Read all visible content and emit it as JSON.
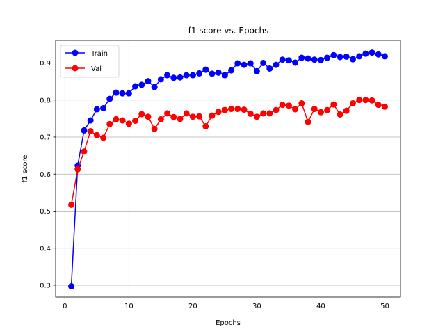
{
  "chart_data": {
    "type": "line",
    "title": "f1 score vs. Epochs",
    "xlabel": "Epochs",
    "ylabel": "f1 score",
    "xlim": [
      -1.45,
      52.45
    ],
    "ylim": [
      0.268,
      0.961
    ],
    "xticks": [
      0,
      10,
      20,
      30,
      40,
      50
    ],
    "yticks": [
      0.3,
      0.4,
      0.5,
      0.6,
      0.7,
      0.8,
      0.9
    ],
    "grid": true,
    "legend_position": "upper-left",
    "x": [
      1,
      2,
      3,
      4,
      5,
      6,
      7,
      8,
      9,
      10,
      11,
      12,
      13,
      14,
      15,
      16,
      17,
      18,
      19,
      20,
      21,
      22,
      23,
      24,
      25,
      26,
      27,
      28,
      29,
      30,
      31,
      32,
      33,
      34,
      35,
      36,
      37,
      38,
      39,
      40,
      41,
      42,
      43,
      44,
      45,
      46,
      47,
      48,
      49,
      50
    ],
    "series": [
      {
        "name": "Train",
        "color": "#0000ff",
        "values": [
          0.297,
          0.623,
          0.718,
          0.745,
          0.775,
          0.778,
          0.803,
          0.82,
          0.818,
          0.818,
          0.837,
          0.841,
          0.851,
          0.835,
          0.856,
          0.867,
          0.86,
          0.861,
          0.867,
          0.867,
          0.872,
          0.882,
          0.871,
          0.874,
          0.867,
          0.88,
          0.899,
          0.895,
          0.899,
          0.878,
          0.9,
          0.885,
          0.895,
          0.909,
          0.907,
          0.901,
          0.914,
          0.912,
          0.909,
          0.908,
          0.914,
          0.921,
          0.916,
          0.917,
          0.91,
          0.918,
          0.925,
          0.928,
          0.923,
          0.918
        ]
      },
      {
        "name": "Val",
        "color": "#ff0000",
        "values": [
          0.517,
          0.613,
          0.661,
          0.716,
          0.705,
          0.698,
          0.735,
          0.748,
          0.745,
          0.736,
          0.744,
          0.762,
          0.755,
          0.722,
          0.748,
          0.764,
          0.754,
          0.749,
          0.764,
          0.755,
          0.756,
          0.729,
          0.758,
          0.768,
          0.773,
          0.776,
          0.776,
          0.774,
          0.763,
          0.755,
          0.764,
          0.764,
          0.773,
          0.787,
          0.785,
          0.775,
          0.791,
          0.741,
          0.776,
          0.767,
          0.773,
          0.788,
          0.761,
          0.771,
          0.791,
          0.8,
          0.8,
          0.799,
          0.787,
          0.782
        ]
      }
    ]
  }
}
